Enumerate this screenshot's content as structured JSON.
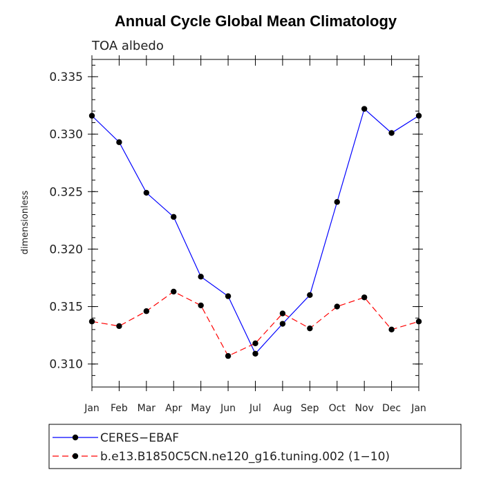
{
  "chart_data": {
    "type": "line",
    "title": "Annual Cycle Global Mean Climatology",
    "subtitle": "TOA albedo",
    "xlabel": "",
    "ylabel": "dimensionless",
    "categories": [
      "Jan",
      "Feb",
      "Mar",
      "Apr",
      "May",
      "Jun",
      "Jul",
      "Aug",
      "Sep",
      "Oct",
      "Nov",
      "Dec",
      "Jan"
    ],
    "ylim": [
      0.308,
      0.3365
    ],
    "yticks": [
      0.31,
      0.315,
      0.32,
      0.325,
      0.33,
      0.335
    ],
    "ytick_labels": [
      "0.310",
      "0.315",
      "0.320",
      "0.325",
      "0.330",
      "0.335"
    ],
    "series": [
      {
        "name": "CERES−EBAF",
        "color": "#0000ff",
        "dash": "solid",
        "values": [
          0.3316,
          0.3293,
          0.3249,
          0.3228,
          0.3176,
          0.3159,
          0.3109,
          0.3135,
          0.316,
          0.3241,
          0.3322,
          0.3301,
          0.3316
        ]
      },
      {
        "name": "b.e13.B1850C5CN.ne120_g16.tuning.002 (1−10)",
        "color": "#ff0000",
        "dash": "dashed",
        "values": [
          0.3137,
          0.3133,
          0.3146,
          0.3163,
          0.3151,
          0.3107,
          0.3118,
          0.3144,
          0.3131,
          0.315,
          0.3158,
          0.313,
          0.3137
        ]
      }
    ],
    "legend_position": "bottom"
  }
}
